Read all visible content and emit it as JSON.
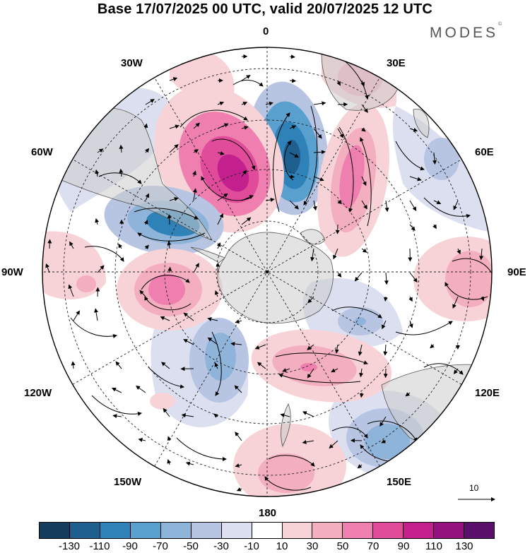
{
  "title": "Base 17/07/2025 00 UTC, valid 20/07/2025 12 UTC",
  "brand": "MODES",
  "brand_mark": "©",
  "longitudes": {
    "lon_0": "0",
    "lon_30e": "30E",
    "lon_60e": "60E",
    "lon_90e": "90E",
    "lon_120e": "120E",
    "lon_150e": "150E",
    "lon_180": "180",
    "lon_150w": "150W",
    "lon_120w": "120W",
    "lon_90w": "90W",
    "lon_60w": "60W",
    "lon_30w": "30W"
  },
  "reference_vector": "10",
  "colorbar": {
    "colors": [
      "#153d5e",
      "#1f5f8f",
      "#2f82b8",
      "#5aa0cf",
      "#8fb4da",
      "#b7c5e3",
      "#dcdff0",
      "#ffffff",
      "#f7d3d7",
      "#f3aec0",
      "#ee7fae",
      "#e04c9a",
      "#c3208e",
      "#93127e",
      "#5a0f6b"
    ],
    "ticks": [
      "-130",
      "-110",
      "-90",
      "-70",
      "-50",
      "-30",
      "-10",
      "10",
      "30",
      "50",
      "70",
      "90",
      "110",
      "130"
    ]
  },
  "anomalies": [
    {
      "name": "anomaly-low-south-atlantic",
      "value": -110,
      "color": "#2f82b8"
    },
    {
      "name": "anomaly-high-weddell-sector",
      "value": 110,
      "color": "#c3208e"
    },
    {
      "name": "anomaly-low-drake-passage",
      "value": -90,
      "color": "#2f82b8"
    },
    {
      "name": "anomaly-high-indian-sector",
      "value": 70,
      "color": "#ee7fae"
    },
    {
      "name": "anomaly-high-bellingshausen",
      "value": 70,
      "color": "#ee7fae"
    },
    {
      "name": "anomaly-high-ross-sea",
      "value": 50,
      "color": "#f3aec0"
    },
    {
      "name": "anomaly-low-southeast-pacific",
      "value": -50,
      "color": "#8fb4da"
    },
    {
      "name": "anomaly-high-90e",
      "value": 50,
      "color": "#f3aec0"
    },
    {
      "name": "anomaly-low-tasman-sea",
      "value": -50,
      "color": "#8fb4da"
    },
    {
      "name": "anomaly-high-south-pacific",
      "value": 50,
      "color": "#f3aec0"
    }
  ]
}
